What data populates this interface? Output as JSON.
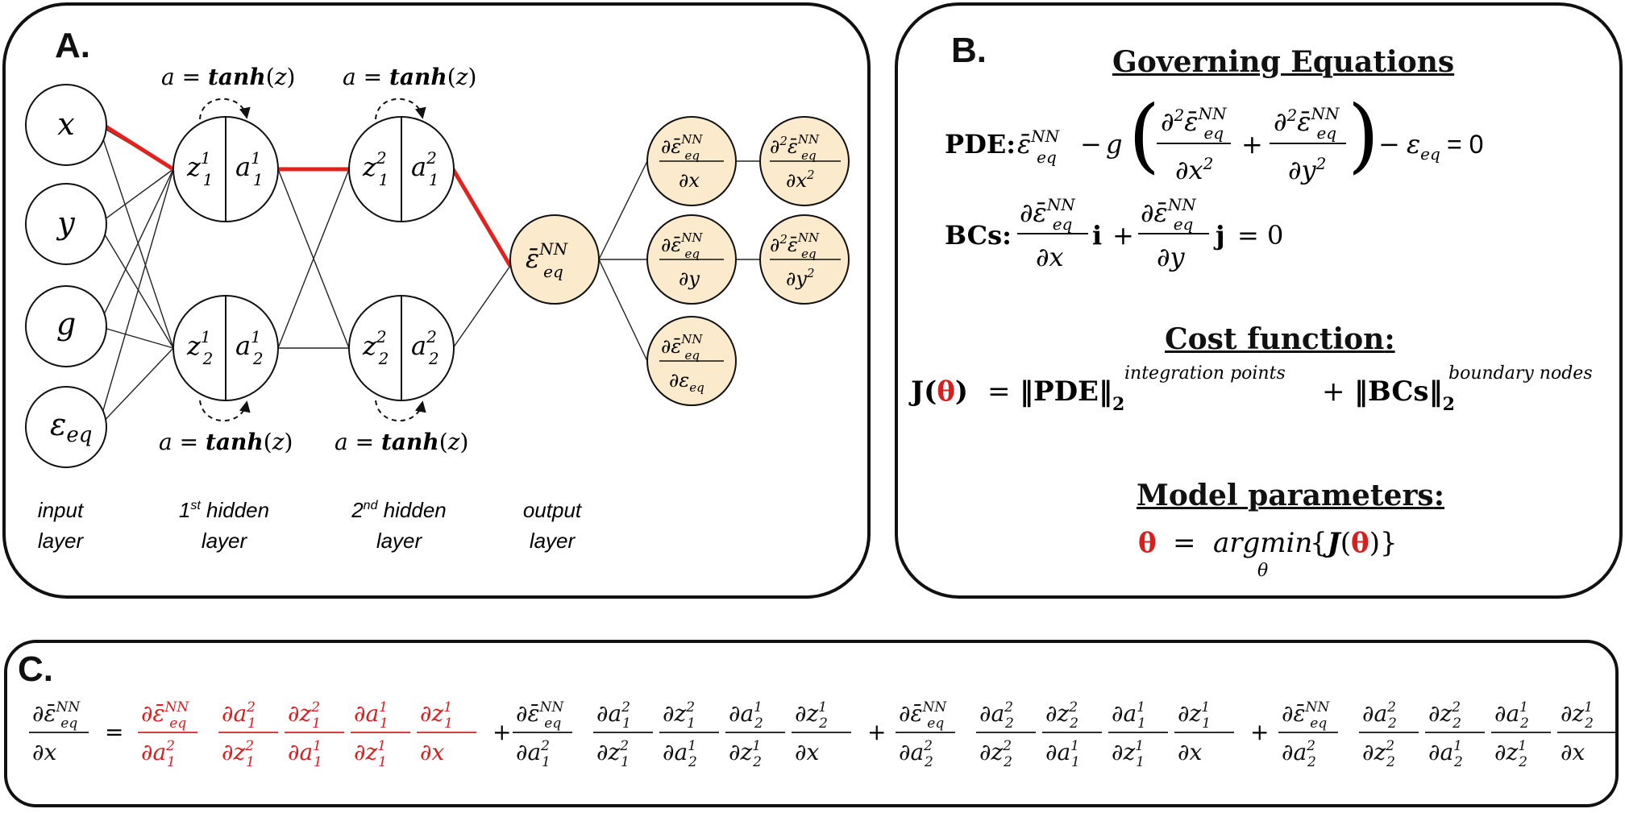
{
  "panels": {
    "a": {
      "label": "A."
    },
    "b": {
      "label": "B."
    },
    "c": {
      "label": "C."
    }
  },
  "network": {
    "inputs": [
      "x",
      "y",
      "g",
      "ε_eq"
    ],
    "activation": "a = tanh(z)",
    "hidden1": [
      {
        "z": "z",
        "zsup": "1",
        "zsub": "1",
        "a": "a",
        "asup": "1",
        "asub": "1"
      },
      {
        "z": "z",
        "zsup": "1",
        "zsub": "2",
        "a": "a",
        "asup": "1",
        "asub": "2"
      }
    ],
    "hidden2": [
      {
        "z": "z",
        "zsup": "2",
        "zsub": "1",
        "a": "a",
        "asup": "2",
        "asub": "1"
      },
      {
        "z": "z",
        "zsup": "2",
        "zsub": "2",
        "a": "a",
        "asup": "2",
        "asub": "2"
      }
    ],
    "output": "ε̄_eq^NN",
    "derivatives_first": [
      "∂ε̄_eq^NN / ∂x",
      "∂ε̄_eq^NN / ∂y",
      "∂ε̄_eq^NN / ∂ε_eq"
    ],
    "derivatives_second": [
      "∂²ε̄_eq^NN / ∂x²",
      "∂²ε̄_eq^NN / ∂y²"
    ],
    "layer_labels": [
      {
        "line1": "input",
        "line2": "layer"
      },
      {
        "line1": "1st hidden",
        "line2": "layer"
      },
      {
        "line1": "2nd hidden",
        "line2": "layer"
      },
      {
        "line1": "output",
        "line2": "layer"
      }
    ],
    "colors": {
      "highlight": "#e0231f",
      "derivative_fill": "#fbeacb",
      "output_fill": "#fbeacb"
    }
  },
  "governing": {
    "title": "Governing Equations",
    "pde_label": "PDE:",
    "bcs_label": "BCs:",
    "cost_title": "Cost function",
    "cost_eq": "J(θ) = ‖PDE‖₂^integration points + ‖BCs‖₂^boundary nodes",
    "params_title": "Model parameters",
    "params_eq": "θ = argmin_θ {J(θ)}"
  }
}
